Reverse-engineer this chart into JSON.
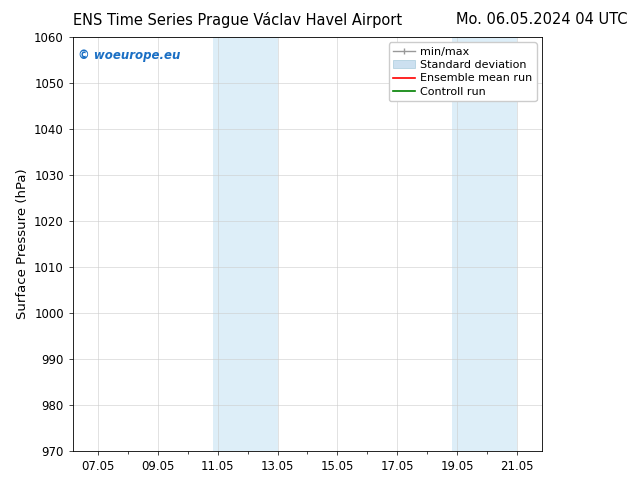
{
  "title_left": "ENS Time Series Prague Václav Havel Airport",
  "title_right": "Mo. 06.05.2024 04 UTC",
  "ylabel": "Surface Pressure (hPa)",
  "ylim": [
    970,
    1060
  ],
  "yticks": [
    970,
    980,
    990,
    1000,
    1010,
    1020,
    1030,
    1040,
    1050,
    1060
  ],
  "xtick_labels": [
    "07.05",
    "09.05",
    "11.05",
    "13.05",
    "15.05",
    "17.05",
    "19.05",
    "21.05"
  ],
  "xtick_positions": [
    1,
    3,
    5,
    7,
    9,
    11,
    13,
    15
  ],
  "xlim": [
    0.1667,
    15.833
  ],
  "shaded_bands": [
    {
      "x_start": 4.833,
      "x_end": 7.0,
      "color": "#ddeef8"
    },
    {
      "x_start": 12.833,
      "x_end": 15.0,
      "color": "#ddeef8"
    }
  ],
  "watermark_text": "© woeurope.eu",
  "watermark_color": "#1a6fc4",
  "legend_entries": [
    {
      "label": "min/max",
      "color": "#aaaaaa"
    },
    {
      "label": "Standard deviation",
      "color": "#cce0f0"
    },
    {
      "label": "Ensemble mean run",
      "color": "red"
    },
    {
      "label": "Controll run",
      "color": "green"
    }
  ],
  "background_color": "#ffffff",
  "tick_label_fontsize": 8.5,
  "axis_label_fontsize": 9.5,
  "title_fontsize": 10.5,
  "legend_fontsize": 8
}
